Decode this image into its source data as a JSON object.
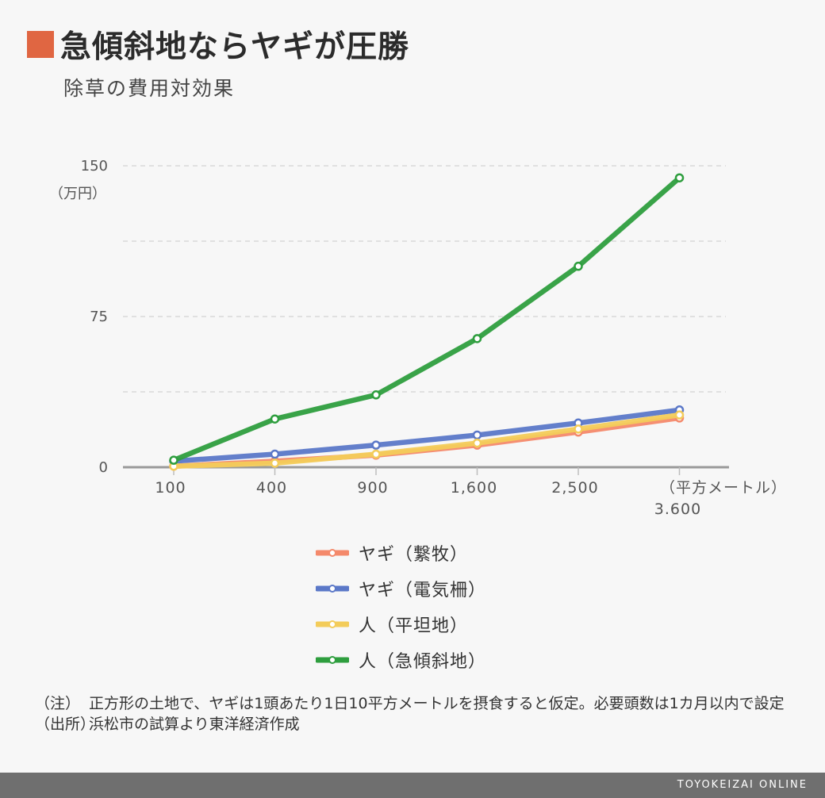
{
  "header": {
    "title": "急傾斜地ならヤギが圧勝",
    "subtitle": "除草の費用対効果",
    "accent_color": "#e06642"
  },
  "chart_data": {
    "type": "line",
    "x": [
      "100",
      "400",
      "900",
      "1,600",
      "2,500",
      "3.600"
    ],
    "x_unit_label": "（平方メートル）",
    "y_unit_label": "（万円）",
    "yticks": [
      "150",
      "75",
      "0"
    ],
    "ylim": [
      0,
      150
    ],
    "grid": true,
    "legend_position": "bottom",
    "series": [
      {
        "name": "ヤギ（繋牧）",
        "color": "#f4896b",
        "values": [
          0.5,
          3,
          6,
          11,
          17.5,
          24.5
        ]
      },
      {
        "name": "ヤギ（電気柵）",
        "color": "#5b78c8",
        "values": [
          3,
          6.5,
          11,
          16,
          22,
          28.5
        ]
      },
      {
        "name": "人（平坦地）",
        "color": "#f3cc5a",
        "values": [
          0.5,
          2,
          6.5,
          12,
          19,
          26
        ]
      },
      {
        "name": "人（急傾斜地）",
        "color": "#2e9e3e",
        "values": [
          3.5,
          24,
          36,
          64,
          100,
          144
        ]
      }
    ]
  },
  "notes": [
    {
      "tag": "（注）",
      "text": "正方形の土地で、ヤギは1頭あたり1日10平方メートルを摂食すると仮定。必要頭数は1カ月以内で設定"
    },
    {
      "tag": "（出所）",
      "text": "浜松市の試算より東洋経済作成"
    }
  ],
  "footer": {
    "brand": "TOYOKEIZAI ONLINE"
  }
}
